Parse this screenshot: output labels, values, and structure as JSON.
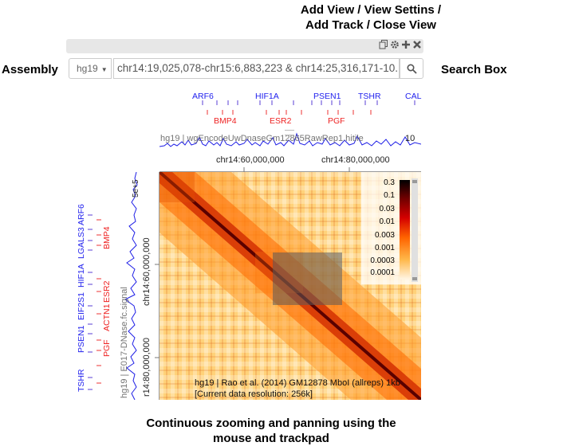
{
  "callouts": {
    "top_line1": "Add View / View Settins /",
    "top_line2": "Add Track / Close View",
    "assembly": "Assembly",
    "search_box": "Search Box",
    "bottom_line1": "Continuous zooming and panning using the",
    "bottom_line2": "mouse and trackpad"
  },
  "header": {
    "icons": [
      "copy-icon",
      "gear-icon",
      "plus-icon",
      "close-icon"
    ]
  },
  "search": {
    "assembly": "hg19",
    "position": "chr14:19,025,078-chr15:6,883,223 & chr14:25,316,171-10..."
  },
  "top_genes": {
    "blue": [
      "ARF6",
      "HIF1A",
      "PSEN1",
      "TSHR",
      "CAL"
    ],
    "red": [
      "BMP4",
      "ESR2",
      "PGF"
    ]
  },
  "top_track": {
    "label": "hg19 | wgEncodeUwDnaseGm12865RawRep1.hitile",
    "max_value": "10"
  },
  "left_genes": {
    "blue": [
      "ARF6",
      "LGALS3",
      "HIF1A",
      "EIF2S1",
      "PSEN1",
      "TSHR"
    ],
    "red": [
      "BMP4",
      "ESR2",
      "ACTN1",
      "PGF"
    ]
  },
  "left_track": {
    "label": "hg19 | E017-DNase.fc.signal",
    "max_value": "5e+5"
  },
  "axis": {
    "x_ticks": [
      "chr14:60,000,000",
      "chr14:80,000,000"
    ],
    "y_ticks": [
      "chr14:60,000,000",
      "r14:80,000,000"
    ]
  },
  "heatmap": {
    "label": "hg19 | Rao et al. (2014) GM12878 MboI (allreps) 1kb",
    "resolution": "[Current data resolution: 256k]",
    "colorbar_ticks": [
      "0.3",
      "0.1",
      "0.03",
      "0.01",
      "0.003",
      "0.001",
      "0.0003",
      "0.0001"
    ],
    "colors": {
      "high": "#000000",
      "mid_high": "#c80000",
      "mid": "#ff7a00",
      "low": "#ffe9c0"
    }
  }
}
